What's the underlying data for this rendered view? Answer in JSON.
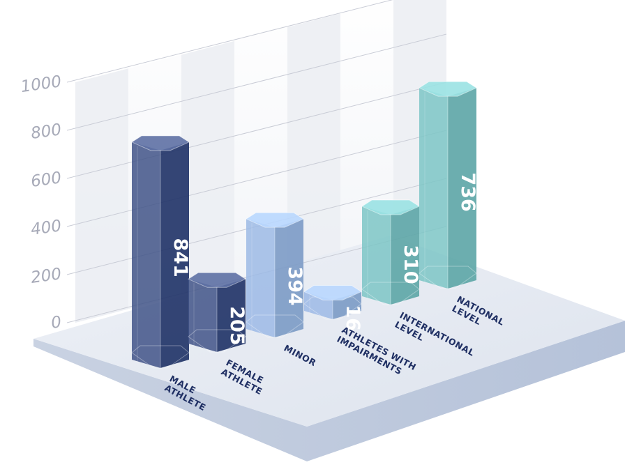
{
  "chart_data": {
    "type": "bar",
    "title": "",
    "xlabel": "",
    "ylabel": "",
    "ylim": [
      0,
      1000
    ],
    "yticks": [
      0,
      200,
      400,
      600,
      800,
      1000
    ],
    "categories": [
      [
        "MALE",
        "ATHLETE"
      ],
      [
        "FEMALE",
        "ATHLETE"
      ],
      [
        "MINOR"
      ],
      [
        "ATHLETES WITH",
        "IMPAIRMENTS"
      ],
      [
        "INTERNATIONAL",
        "LEVEL"
      ],
      [
        "NATIONAL",
        "LEVEL"
      ]
    ],
    "values": [
      841,
      205,
      394,
      16,
      310,
      736
    ],
    "colors": [
      "#233569",
      "#233569",
      "#7e9cc7",
      "#7e9cc7",
      "#5fa7a8",
      "#5fa7a8"
    ],
    "label_color": "#1f2f63",
    "grid": true
  }
}
